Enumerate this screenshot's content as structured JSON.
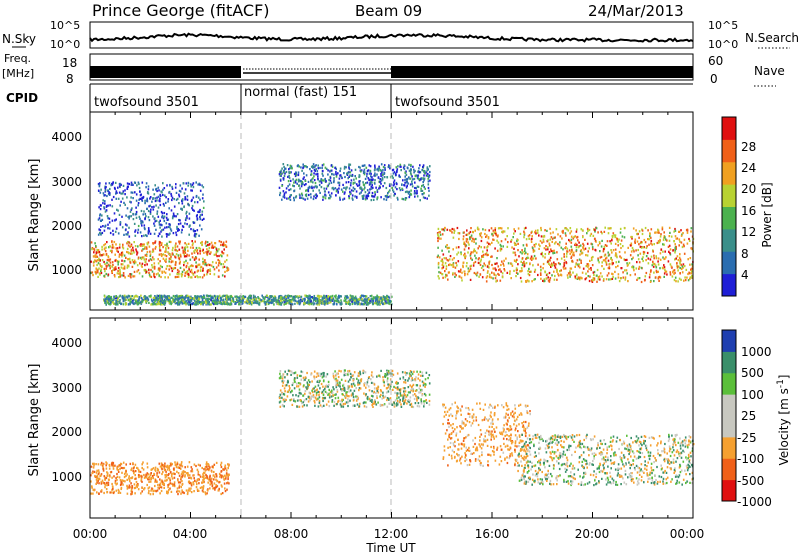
{
  "header": {
    "station": "Prince George (fitACF)",
    "beam": "Beam 09",
    "date": "24/Mar/2013"
  },
  "summary_panels": {
    "nsky_label": "N.Sky",
    "nsearch_label": "N.Search",
    "nsky_axis": {
      "top": "10^5",
      "bottom": "10^0"
    },
    "nsearch_axis": {
      "top": "10^5",
      "bottom": "10^0"
    },
    "freq_label_top": "Freq.",
    "freq_label_unit": "[MHz]",
    "freq_axis": {
      "top": "18",
      "bottom": "8"
    },
    "nave_label": "Nave",
    "nave_axis": {
      "top": "60",
      "bottom": "0"
    },
    "cpid_label": "CPID",
    "cpid_segments": [
      {
        "label": "twofsound 3501",
        "start_ut": 0,
        "end_ut": 6
      },
      {
        "label": "normal (fast) 151",
        "start_ut": 6,
        "end_ut": 12
      },
      {
        "label": "twofsound 3501",
        "start_ut": 12,
        "end_ut": 24
      }
    ]
  },
  "power_panel": {
    "ylabel": "Slant Range [km]",
    "yticks": [
      "1000",
      "2000",
      "3000",
      "4000"
    ],
    "colorbar_label": "Power [dB]",
    "colorbar_ticks": [
      "4",
      "8",
      "12",
      "16",
      "20",
      "24",
      "28"
    ],
    "colors": [
      "#1f1fd6",
      "#2a6db0",
      "#3a8f8a",
      "#4bb14e",
      "#b8d232",
      "#f0a020",
      "#f06018",
      "#e01010"
    ]
  },
  "velocity_panel": {
    "ylabel": "Slant Range [km]",
    "yticks": [
      "1000",
      "2000",
      "3000",
      "4000"
    ],
    "colorbar_label": "Velocity [m s",
    "colorbar_label_sup": "-1",
    "colorbar_label_tail": "]",
    "colorbar_ticks": [
      "-1000",
      "-500",
      "-100",
      "-25",
      "25",
      "100",
      "500",
      "1000"
    ],
    "colors": [
      "#e01010",
      "#f06018",
      "#f5a030",
      "#c8c8c0",
      "#c8c8c0",
      "#5bbf3a",
      "#3a8f6a",
      "#1f3fb0"
    ]
  },
  "x_axis": {
    "label": "Time UT",
    "ticks": [
      "00:00",
      "04:00",
      "08:00",
      "12:00",
      "16:00",
      "20:00",
      "00:00"
    ]
  },
  "chart_data": {
    "type": "heatmap",
    "title": "Prince George (fitACF)",
    "subtitle": "Beam 09 24/Mar/2013",
    "xlabel": "Time UT",
    "ylabel": "Slant Range [km]",
    "xlim_hours": [
      0,
      24
    ],
    "ylim_km": [
      180,
      4500
    ],
    "power_colorbar_db": [
      4,
      8,
      12,
      16,
      20,
      24,
      28
    ],
    "velocity_colorbar_ms": [
      -1000,
      -500,
      -100,
      -25,
      25,
      100,
      500,
      1000
    ],
    "mode_change_hours": [
      6,
      12
    ],
    "power_features": [
      {
        "name": "",
        "t_start": 0,
        "t_end": 5.5,
        "range_km": [
          900,
          1700
        ],
        "power_db": 22
      },
      {
        "name": "",
        "t_start": 0.3,
        "t_end": 4.5,
        "range_km": [
          1800,
          3000
        ],
        "power_db": 6
      },
      {
        "name": "",
        "t_start": 7.5,
        "t_end": 13.5,
        "range_km": [
          2600,
          3400
        ],
        "power_db": 8
      },
      {
        "name": "",
        "t_start": 13.8,
        "t_end": 24,
        "range_km": [
          800,
          2000
        ],
        "power_db": 22
      },
      {
        "name": "",
        "t_start": 0.5,
        "t_end": 12,
        "range_km": [
          300,
          500
        ],
        "power_db": 12
      }
    ],
    "velocity_features": [
      {
        "name": "",
        "t_start": 0,
        "t_end": 5.5,
        "range_km": [
          700,
          1400
        ],
        "velocity_ms": -400
      },
      {
        "name": "",
        "t_start": 7.5,
        "t_end": 13.5,
        "range_km": [
          2600,
          3400
        ],
        "velocity_ms": 0
      },
      {
        "name": "",
        "t_start": 14,
        "t_end": 17.5,
        "range_km": [
          1300,
          2700
        ],
        "velocity_ms": -300
      },
      {
        "name": "",
        "t_start": 17,
        "t_end": 24,
        "range_km": [
          900,
          2000
        ],
        "velocity_ms": 0
      }
    ]
  }
}
